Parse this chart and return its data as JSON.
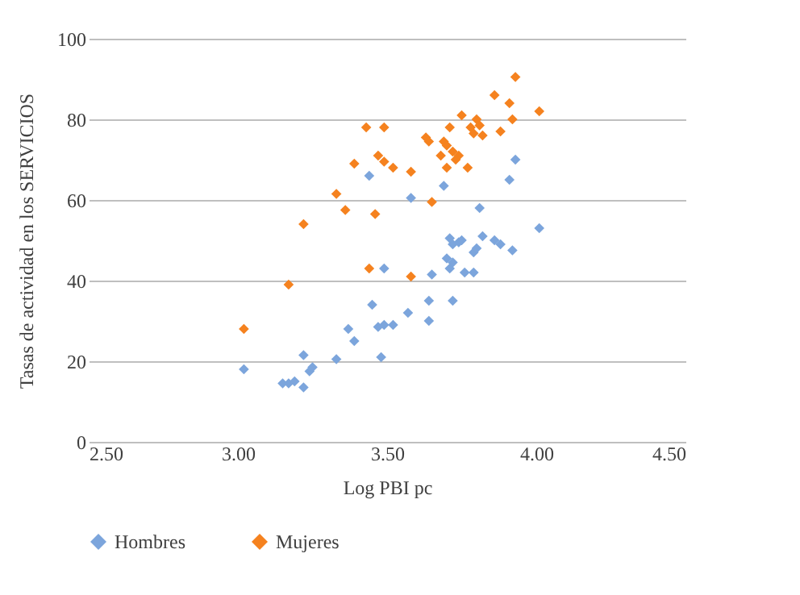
{
  "chart_data": {
    "type": "scatter",
    "xlabel": "Log PBI pc",
    "ylabel": "Tasas de actividad en los SERVICIOS",
    "xlim": [
      2.5,
      4.5
    ],
    "xticks": [
      {
        "value": 2.5,
        "label": "2.50"
      },
      {
        "value": 3,
        "label": "3.00"
      },
      {
        "value": 3.5,
        "label": "3.50"
      },
      {
        "value": 4,
        "label": "4.00"
      },
      {
        "value": 4.5,
        "label": "4.50"
      }
    ],
    "ylim": [
      0,
      100
    ],
    "yticks": [
      0,
      20,
      40,
      60,
      80,
      100
    ],
    "grid": "y",
    "legend": "bottom",
    "marker": "diamond",
    "series": [
      {
        "name": "Hombres",
        "color": "#7ca5dc",
        "x": [
          3.02,
          3.15,
          3.17,
          3.19,
          3.22,
          3.22,
          3.24,
          3.25,
          3.33,
          3.37,
          3.39,
          3.44,
          3.45,
          3.47,
          3.48,
          3.49,
          3.49,
          3.52,
          3.57,
          3.58,
          3.64,
          3.64,
          3.65,
          3.69,
          3.7,
          3.71,
          3.71,
          3.72,
          3.72,
          3.72,
          3.74,
          3.75,
          3.76,
          3.79,
          3.79,
          3.8,
          3.81,
          3.82,
          3.86,
          3.88,
          3.91,
          3.92,
          3.93,
          4.01
        ],
        "values": [
          18,
          14.5,
          14.5,
          15,
          21.5,
          13.5,
          17.5,
          18.5,
          20.5,
          28,
          25,
          66,
          34,
          28.5,
          21,
          29,
          43,
          29,
          32,
          60.5,
          35,
          30,
          41.5,
          63.5,
          45.5,
          43,
          50.5,
          44.5,
          35,
          49,
          49.5,
          50,
          42,
          47,
          42,
          48,
          58,
          51,
          50,
          49,
          65,
          47.5,
          70,
          53
        ]
      },
      {
        "name": "Mujeres",
        "color": "#f5821f",
        "x": [
          3.02,
          3.17,
          3.22,
          3.33,
          3.36,
          3.39,
          3.43,
          3.44,
          3.46,
          3.47,
          3.49,
          3.49,
          3.52,
          3.58,
          3.58,
          3.63,
          3.64,
          3.65,
          3.68,
          3.69,
          3.7,
          3.7,
          3.71,
          3.72,
          3.73,
          3.74,
          3.75,
          3.77,
          3.78,
          3.79,
          3.8,
          3.81,
          3.82,
          3.86,
          3.88,
          3.91,
          3.92,
          3.93,
          4.01
        ],
        "values": [
          28,
          39,
          54,
          61.5,
          57.5,
          69,
          78,
          43,
          56.5,
          71,
          69.5,
          78,
          68,
          67,
          41,
          75.5,
          74.5,
          59.5,
          71,
          74.5,
          73.5,
          68,
          78,
          72,
          70,
          71,
          81,
          68,
          78,
          76.5,
          80,
          78.5,
          76,
          86,
          77,
          84,
          80,
          90.5,
          82
        ]
      }
    ]
  }
}
